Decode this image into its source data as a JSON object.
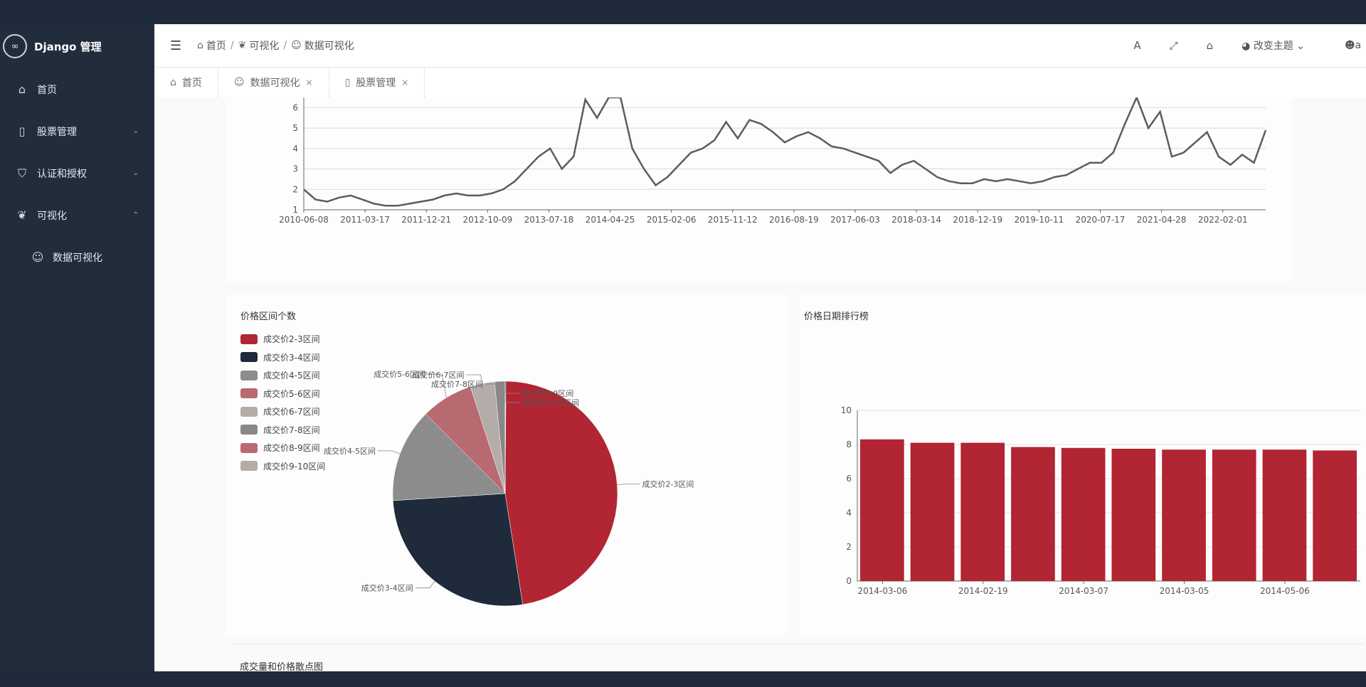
{
  "brand": {
    "logo_glyph": "∞",
    "name": "Django 管理"
  },
  "sidebar": {
    "items": [
      {
        "label": "首页",
        "icon": "home-icon",
        "glyph": "⌂",
        "chevron": ""
      },
      {
        "label": "股票管理",
        "icon": "file-icon",
        "glyph": "▯",
        "chevron": "⌄"
      },
      {
        "label": "认证和授权",
        "icon": "shield-icon",
        "glyph": "⛉",
        "chevron": "⌄"
      },
      {
        "label": "可视化",
        "icon": "leaf-icon",
        "glyph": "❦",
        "chevron": "⌃"
      },
      {
        "label": "数据可视化",
        "icon": "smile-icon",
        "glyph": "☺",
        "chevron": ""
      }
    ]
  },
  "breadcrumb": [
    {
      "label": "首页",
      "icon": "home-icon",
      "glyph": "⌂"
    },
    {
      "label": "可视化",
      "icon": "leaf-icon",
      "glyph": "❦"
    },
    {
      "label": "数据可视化",
      "icon": "smile-icon",
      "glyph": "☺"
    }
  ],
  "toolbar": {
    "font_glyph": "A",
    "fullscreen_glyph": "⤢",
    "home_glyph": "⌂",
    "theme_label": "改变主题",
    "theme_chevron": "⌄",
    "user_label": "a"
  },
  "tabs": [
    {
      "label": "首页",
      "glyph": "⌂",
      "close": ""
    },
    {
      "label": "数据可视化",
      "glyph": "☺",
      "close": "×"
    },
    {
      "label": "股票管理",
      "glyph": "▯",
      "close": "×"
    }
  ],
  "colors": {
    "red": "#b22532",
    "navy": "#1f2a3a",
    "gray": "#8c8c8c",
    "pink": "#b86a70",
    "lightgray": "#b3aca9"
  },
  "chart_data": [
    {
      "type": "line",
      "x_ticks": [
        "2010-06-08",
        "2011-03-17",
        "2011-12-21",
        "2012-10-09",
        "2013-07-18",
        "2014-04-25",
        "2015-02-06",
        "2015-11-12",
        "2016-08-19",
        "2017-06-03",
        "2018-03-14",
        "2018-12-19",
        "2019-10-11",
        "2020-07-17",
        "2021-04-28",
        "2022-02-01"
      ],
      "ylim": [
        1,
        6.5
      ],
      "y_ticks": [
        1,
        2,
        3,
        4,
        5,
        6
      ],
      "series": [
        {
          "values": [
            2.0,
            1.5,
            1.4,
            1.6,
            1.7,
            1.5,
            1.3,
            1.2,
            1.2,
            1.3,
            1.4,
            1.5,
            1.7,
            1.8,
            1.7,
            1.7,
            1.8,
            2.0,
            2.4,
            3.0,
            3.6,
            4.0,
            3.0,
            3.6,
            6.4,
            5.5,
            6.6,
            6.6,
            4.0,
            3.0,
            2.2,
            2.6,
            3.2,
            3.8,
            4.0,
            4.4,
            5.3,
            4.5,
            5.4,
            5.2,
            4.8,
            4.3,
            4.6,
            4.8,
            4.5,
            4.1,
            4.0,
            3.8,
            3.6,
            3.4,
            2.8,
            3.2,
            3.4,
            3.0,
            2.6,
            2.4,
            2.3,
            2.3,
            2.5,
            2.4,
            2.5,
            2.4,
            2.3,
            2.4,
            2.6,
            2.7,
            3.0,
            3.3,
            3.3,
            3.8,
            5.2,
            6.5,
            5.0,
            5.8,
            3.6,
            3.8,
            4.3,
            4.8,
            3.6,
            3.2,
            3.7,
            3.3,
            4.9
          ]
        }
      ]
    },
    {
      "type": "pie",
      "title": "价格区间个数",
      "legend_position": "left",
      "categories": [
        "成交价2-3区间",
        "成交价3-4区间",
        "成交价4-5区间",
        "成交价5-6区间",
        "成交价6-7区间",
        "成交价7-8区间",
        "成交价8-9区间",
        "成交价9-10区间"
      ],
      "values": [
        47.5,
        26.5,
        13.5,
        7.5,
        3.5,
        1.5,
        0.0,
        0.0
      ]
    },
    {
      "type": "bar",
      "title": "价格日期排行榜",
      "ylim": [
        0,
        10
      ],
      "y_ticks": [
        0,
        2,
        4,
        6,
        8,
        10
      ],
      "x_tick_labels": [
        "2014-03-06",
        "2014-02-19",
        "2014-03-07",
        "2014-03-05",
        "2014-05-06"
      ],
      "values": [
        8.3,
        8.1,
        8.1,
        7.85,
        7.8,
        7.75,
        7.7,
        7.7,
        7.7,
        7.65
      ]
    }
  ],
  "bottom_section": {
    "title": "成交量和价格散点图"
  }
}
